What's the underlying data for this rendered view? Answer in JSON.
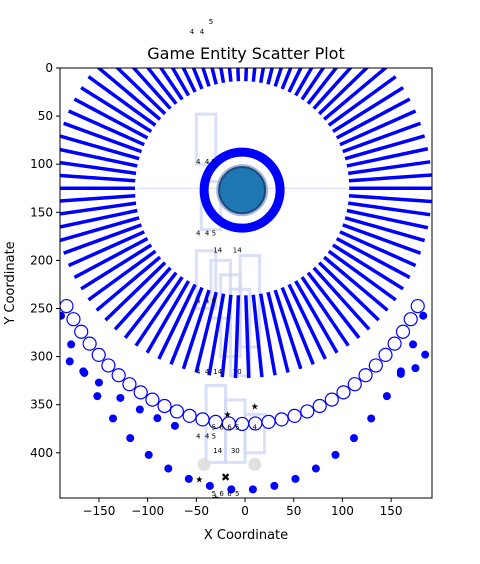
{
  "chart_data": {
    "type": "scatter",
    "title": "Game Entity Scatter Plot",
    "xlabel": "X Coordinate",
    "ylabel": "Y Coordinate",
    "xlim": [
      -190,
      192
    ],
    "ylim": [
      447,
      0
    ],
    "y_inverted": true,
    "grid": false,
    "legend": "none",
    "xticks": [
      -150,
      -100,
      -50,
      0,
      50,
      100,
      150
    ],
    "yticks": [
      0,
      50,
      100,
      150,
      200,
      250,
      300,
      350,
      400
    ],
    "colors": {
      "blue": "#0000ff",
      "steelblue": "#1f77b4",
      "green": "#008000",
      "darkred": "#8b0000",
      "light": "#cfd8f5"
    },
    "elements": {
      "player": {
        "x": -3,
        "y": 127,
        "color": "#1f77b4",
        "ring_color": "#0000ff"
      },
      "radial_spikes": {
        "center": [
          -3,
          125
        ],
        "inner_radius": 110,
        "outer_radius": 195,
        "count": 90,
        "color": "#0000ff"
      },
      "open_circles": {
        "center": [
          -3,
          125
        ],
        "radius": 245,
        "start_angle_deg": 30,
        "end_angle_deg": 150,
        "count": 33
      },
      "dot_arc": {
        "center": [
          -3,
          125
        ],
        "radius": 285,
        "start_angle_deg": 25,
        "end_angle_deg": 155,
        "count": 22
      },
      "dot_inner": [
        [
          -180,
          305
        ],
        [
          -165,
          317
        ],
        [
          -150,
          327
        ],
        [
          -128,
          343
        ],
        [
          -108,
          355
        ],
        [
          -90,
          364
        ],
        [
          -72,
          372
        ],
        [
          160,
          318
        ],
        [
          175,
          312
        ],
        [
          185,
          298
        ]
      ],
      "ghost_blocks": [
        {
          "x0": -50,
          "x1": -30,
          "y0": 48,
          "y1": 100
        },
        {
          "x0": -45,
          "x1": -25,
          "y0": 118,
          "y1": 168
        },
        {
          "x0": -50,
          "x1": -30,
          "y0": 190,
          "y1": 250
        },
        {
          "x0": -35,
          "x1": -15,
          "y0": 200,
          "y1": 260
        },
        {
          "x0": -25,
          "x1": -5,
          "y0": 215,
          "y1": 300
        },
        {
          "x0": -15,
          "x1": 5,
          "y0": 230,
          "y1": 320
        },
        {
          "x0": -5,
          "x1": 15,
          "y0": 195,
          "y1": 290
        },
        {
          "x0": -40,
          "x1": -20,
          "y0": 330,
          "y1": 410
        },
        {
          "x0": -20,
          "x1": 0,
          "y0": 345,
          "y1": 410
        },
        {
          "x0": 0,
          "x1": 20,
          "y0": 360,
          "y1": 400
        }
      ],
      "label_groups": [
        {
          "y": 100,
          "labels": [
            "4",
            "4",
            "5"
          ],
          "x": [
            -48,
            -39,
            -32
          ]
        },
        {
          "y": 174,
          "labels": [
            "4",
            "4",
            "5"
          ],
          "x": [
            -48,
            -39,
            -32
          ]
        },
        {
          "y": 245,
          "labels": [
            "4",
            "4",
            "5"
          ],
          "x": [
            -48,
            -39,
            -32
          ]
        },
        {
          "y": 385,
          "labels": [
            "4",
            "4",
            "5"
          ],
          "x": [
            -48,
            -39,
            -32
          ]
        },
        {
          "y": 452,
          "labels": [
            "4",
            "4",
            "5"
          ],
          "x": [
            -48,
            -39,
            -32
          ]
        },
        {
          "y": 192,
          "labels": [
            "14",
            "14"
          ],
          "x": [
            -28,
            -8
          ]
        },
        {
          "y": 460,
          "labels": [
            "14",
            "14"
          ],
          "x": [
            -28,
            -8
          ]
        },
        {
          "y": 318,
          "labels": [
            "4",
            "4",
            "14",
            "10"
          ],
          "x": [
            -48,
            -39,
            -28,
            -8
          ]
        },
        {
          "y": 376,
          "labels": [
            "5",
            "6",
            "6",
            "5",
            "4"
          ],
          "x": [
            -32,
            -24,
            -16,
            -8,
            10
          ]
        },
        {
          "y": 445,
          "labels": [
            "5",
            "6",
            "6",
            "5"
          ],
          "x": [
            -32,
            -24,
            -16,
            -8
          ]
        },
        {
          "y": 400,
          "labels": [
            "14",
            "30"
          ],
          "x": [
            -28,
            -10
          ]
        },
        {
          "y": 455,
          "labels": [
            "4",
            "4"
          ],
          "x": [
            -8,
            8
          ]
        }
      ],
      "green_stars": [
        [
          -18,
          360
        ],
        [
          10,
          352
        ],
        [
          -47,
          428
        ],
        [
          -30,
          447
        ]
      ],
      "red_x": [
        [
          -20,
          425
        ]
      ],
      "gray_circles": [
        [
          -42,
          412
        ],
        [
          10,
          412
        ]
      ]
    }
  }
}
